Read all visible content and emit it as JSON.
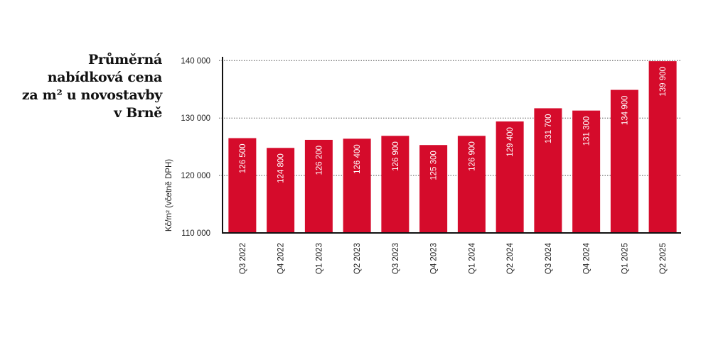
{
  "title_lines": [
    "Průměrná",
    "nabídková cena",
    "za m² u novostavby",
    "v Brně"
  ],
  "chart_data": {
    "type": "bar",
    "title": "Průměrná nabídková cena za m² u novostavby v Brně",
    "xlabel": "",
    "ylabel": "Kč/m² (včetně DPH)",
    "ylim": [
      110000,
      140700
    ],
    "yticks": [
      110000,
      120000,
      130000,
      140000
    ],
    "ytick_labels": [
      "110 000",
      "120 000",
      "130 000",
      "140 000"
    ],
    "grid": "horizontal-dotted",
    "categories": [
      "Q3 2022",
      "Q4 2022",
      "Q1 2023",
      "Q2 2023",
      "Q3 2023",
      "Q4 2023",
      "Q1 2024",
      "Q2 2024",
      "Q3 2024",
      "Q4 2024",
      "Q1 2025",
      "Q2 2025"
    ],
    "values": [
      126500,
      124800,
      126200,
      126400,
      126900,
      125300,
      126900,
      129400,
      131700,
      131300,
      134900,
      139900
    ],
    "data_labels": [
      "126 500",
      "124 800",
      "126 200",
      "126 400",
      "126 900",
      "125 300",
      "126 900",
      "129 400",
      "131 700",
      "131 300",
      "134 900",
      "139 900"
    ],
    "bar_color": "#d50b2b"
  }
}
